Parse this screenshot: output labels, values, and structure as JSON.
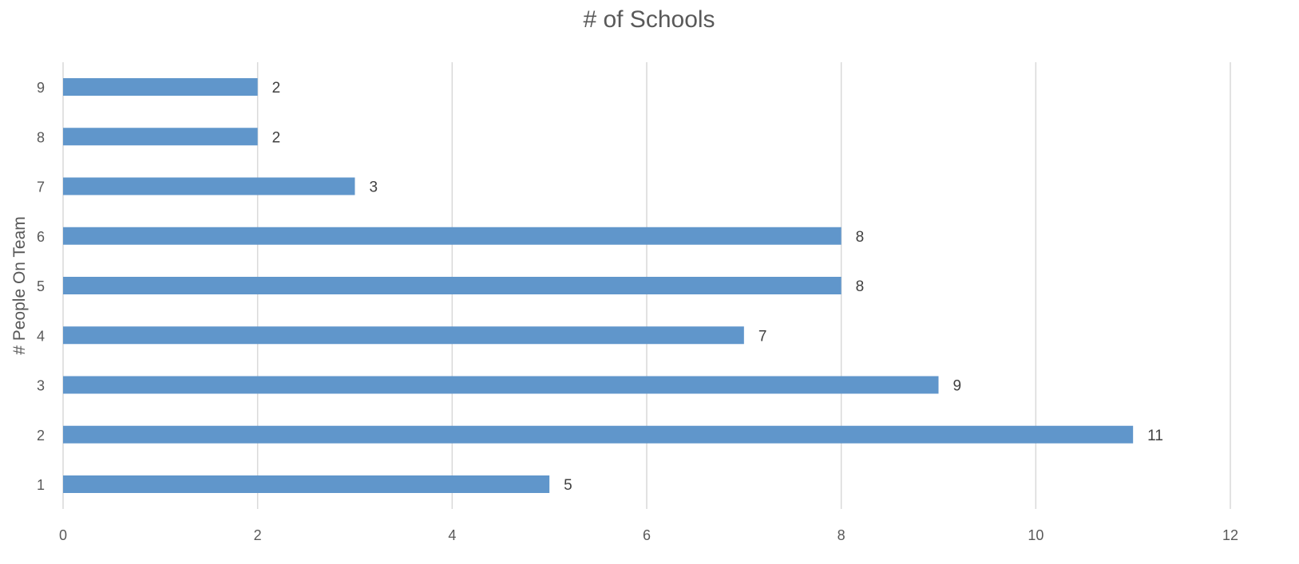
{
  "chart_data": {
    "type": "bar",
    "orientation": "horizontal",
    "title": "# of Schools",
    "xlabel": "",
    "ylabel": "# People On Team",
    "categories": [
      "1",
      "2",
      "3",
      "4",
      "5",
      "6",
      "7",
      "8",
      "9"
    ],
    "values": [
      5,
      11,
      9,
      7,
      8,
      8,
      3,
      2,
      2
    ],
    "data_labels": [
      "5",
      "11",
      "9",
      "7",
      "8",
      "8",
      "3",
      "2",
      "2"
    ],
    "xlim": [
      0,
      12
    ],
    "x_ticks": [
      0,
      2,
      4,
      6,
      8,
      10,
      12
    ],
    "x_tick_labels": [
      "0",
      "2",
      "4",
      "6",
      "8",
      "10",
      "12"
    ],
    "grid": true,
    "legend": "none",
    "bar_color": "#6096cb",
    "grid_color": "#d9d9d9",
    "text_color": "#595959"
  }
}
